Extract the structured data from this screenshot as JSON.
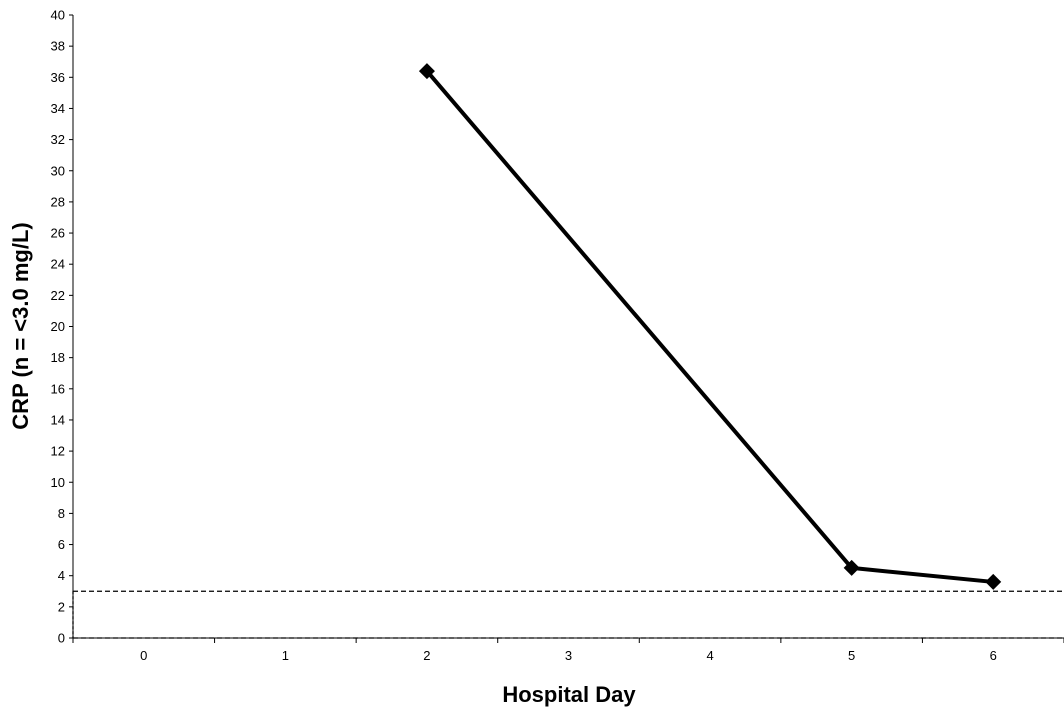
{
  "chart_data": {
    "type": "line",
    "title": "",
    "xlabel": "Hospital Day",
    "ylabel": "CRP (n = <3.0 mg/L)",
    "x_ticks": [
      "0",
      "1",
      "2",
      "3",
      "4",
      "5",
      "6"
    ],
    "xlim": [
      -0.5,
      6.5
    ],
    "ylim": [
      0,
      40
    ],
    "y_ticks": [
      0,
      2,
      4,
      6,
      8,
      10,
      12,
      14,
      16,
      18,
      20,
      22,
      24,
      26,
      28,
      30,
      32,
      34,
      36,
      38,
      40
    ],
    "grid": false,
    "legend": "none",
    "series": [
      {
        "x": [
          2,
          5,
          6
        ],
        "values": [
          36.4,
          4.5,
          3.6
        ],
        "color": "#000000",
        "marker": "diamond"
      }
    ],
    "reference_lines": [
      {
        "axis": "y",
        "value": 3.0,
        "style": "dashed"
      }
    ]
  }
}
